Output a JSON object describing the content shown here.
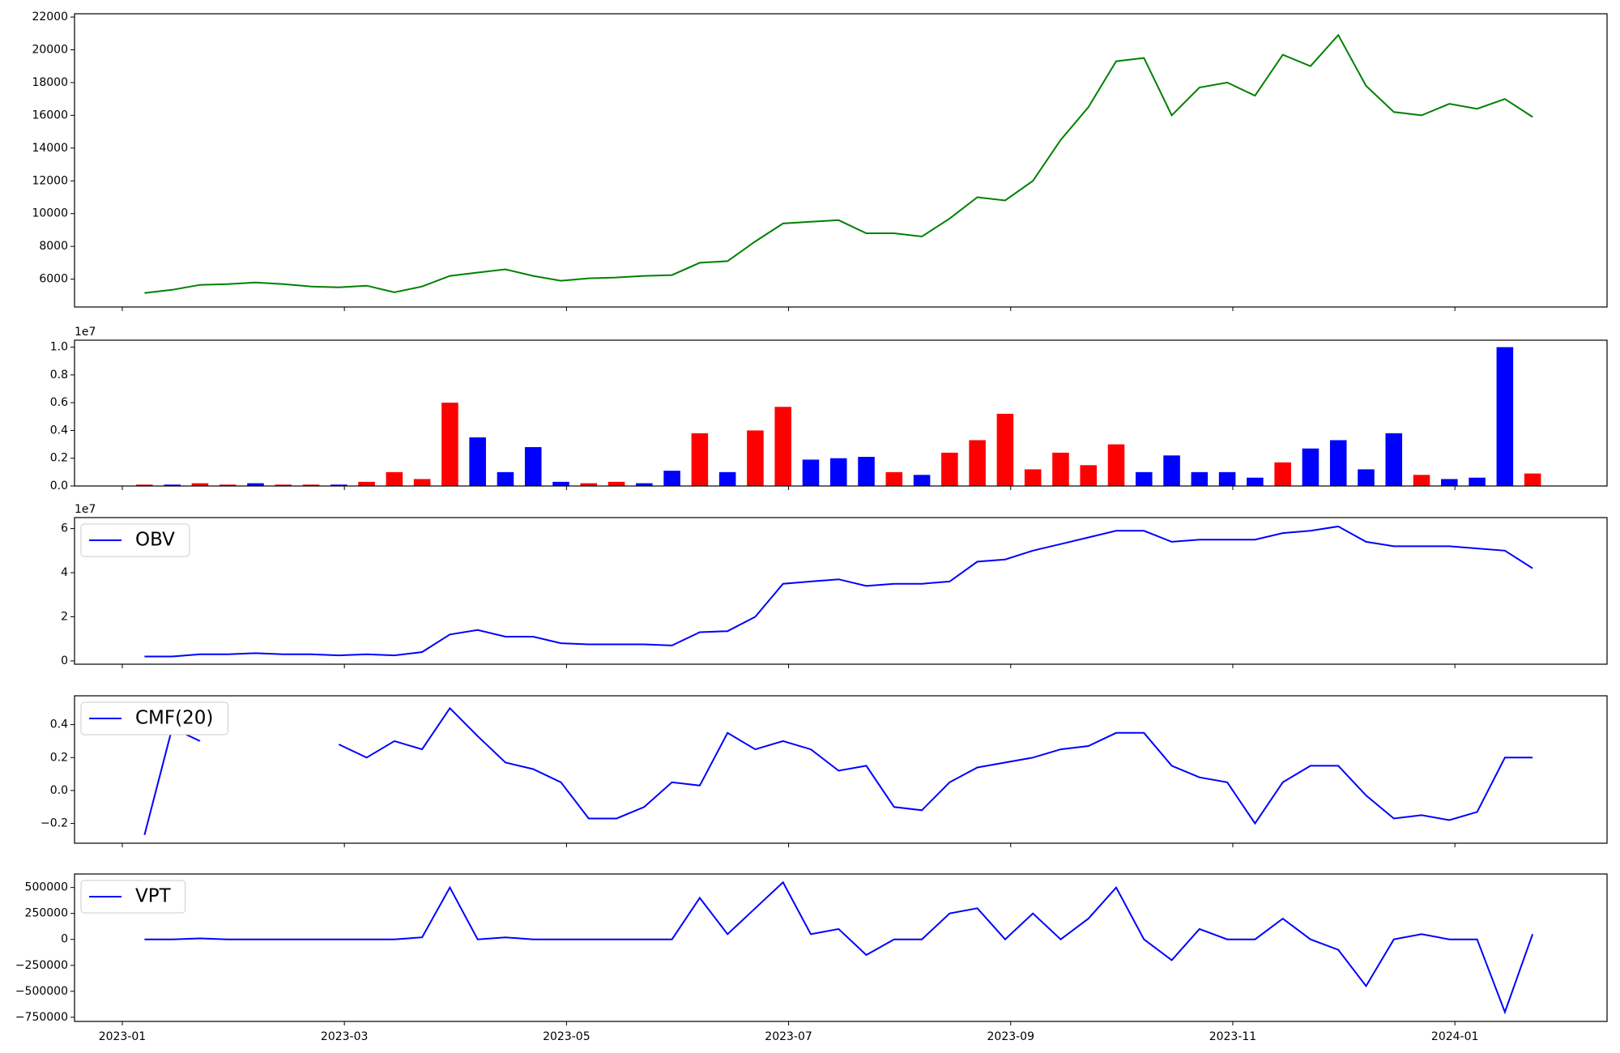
{
  "chart_data": [
    {
      "type": "line",
      "color": "green",
      "x": [
        0.2,
        0.45,
        0.7,
        0.95,
        1.2,
        1.45,
        1.7,
        1.95,
        2.2,
        2.45,
        2.7,
        2.95,
        3.2,
        3.45,
        3.7,
        3.95,
        4.2,
        4.45,
        4.7,
        4.95,
        5.2,
        5.45,
        5.7,
        5.95,
        6.2,
        6.45,
        6.7,
        6.95,
        7.2,
        7.45,
        7.7,
        7.95,
        8.2,
        8.45,
        8.7,
        8.95,
        9.2,
        9.45,
        9.7,
        9.95,
        10.2,
        10.45,
        10.7,
        10.95,
        11.2,
        11.45,
        11.7,
        11.95,
        12.2,
        12.45,
        12.7
      ],
      "values": [
        5150,
        5350,
        5650,
        5700,
        5800,
        5700,
        5550,
        5500,
        5600,
        5200,
        5550,
        6200,
        6400,
        6600,
        6200,
        5900,
        6050,
        6100,
        6200,
        6250,
        7000,
        7100,
        8300,
        9400,
        9500,
        9600,
        8800,
        8800,
        8600,
        9700,
        11000,
        10800,
        12000,
        14500,
        16500,
        19300,
        19500,
        16000,
        17700,
        18000,
        17200,
        19700,
        19000,
        20900,
        17800,
        16200,
        16000,
        16700,
        16400,
        17000,
        15900
      ],
      "xlim": [
        -0.43,
        13.37
      ],
      "ylim": [
        4300,
        22200
      ],
      "yticks": [
        6000,
        8000,
        10000,
        12000,
        14000,
        16000,
        18000,
        20000,
        22000
      ]
    },
    {
      "type": "bar",
      "offset_text": "1e7",
      "x": [
        0.2,
        0.45,
        0.7,
        0.95,
        1.2,
        1.45,
        1.7,
        1.95,
        2.2,
        2.45,
        2.7,
        2.95,
        3.2,
        3.45,
        3.7,
        3.95,
        4.2,
        4.45,
        4.7,
        4.95,
        5.2,
        5.45,
        5.7,
        5.95,
        6.2,
        6.45,
        6.7,
        6.95,
        7.2,
        7.45,
        7.7,
        7.95,
        8.2,
        8.45,
        8.7,
        8.95,
        9.2,
        9.45,
        9.7,
        9.95,
        10.2,
        10.45,
        10.7,
        10.95,
        11.2,
        11.45,
        11.7,
        11.95,
        12.2,
        12.45,
        12.7
      ],
      "values": [
        0.01,
        0.01,
        0.02,
        0.01,
        0.02,
        0.01,
        0.01,
        0.01,
        0.03,
        0.1,
        0.05,
        0.6,
        0.35,
        0.1,
        0.28,
        0.03,
        0.02,
        0.03,
        0.02,
        0.11,
        0.38,
        0.1,
        0.4,
        0.57,
        0.19,
        0.2,
        0.21,
        0.1,
        0.08,
        0.24,
        0.33,
        0.52,
        0.12,
        0.24,
        0.15,
        0.3,
        0.1,
        0.22,
        0.1,
        0.1,
        0.06,
        0.17,
        0.27,
        0.33,
        0.12,
        0.38,
        0.08,
        0.05,
        0.06,
        1.0,
        0.09
      ],
      "colors": [
        "red",
        "blue",
        "red",
        "red",
        "blue",
        "red",
        "red",
        "blue",
        "red",
        "red",
        "red",
        "red",
        "blue",
        "blue",
        "blue",
        "blue",
        "red",
        "red",
        "blue",
        "blue",
        "red",
        "blue",
        "red",
        "red",
        "blue",
        "blue",
        "blue",
        "red",
        "blue",
        "red",
        "red",
        "red",
        "red",
        "red",
        "red",
        "red",
        "blue",
        "blue",
        "blue",
        "blue",
        "blue",
        "red",
        "blue",
        "blue",
        "blue",
        "blue",
        "red",
        "blue",
        "blue",
        "blue",
        "red"
      ],
      "xlim": [
        -0.43,
        13.37
      ],
      "ylim": [
        0,
        1.05
      ],
      "yticks": [
        {
          "value": 0,
          "label": "0.0"
        },
        0.2,
        0.4,
        0.6,
        0.8,
        {
          "value": 1,
          "label": "1.0"
        }
      ]
    },
    {
      "type": "line",
      "color": "blue",
      "offset_text": "1e7",
      "legend": "OBV",
      "x": [
        0.2,
        0.45,
        0.7,
        0.95,
        1.2,
        1.45,
        1.7,
        1.95,
        2.2,
        2.45,
        2.7,
        2.95,
        3.2,
        3.45,
        3.7,
        3.95,
        4.2,
        4.45,
        4.7,
        4.95,
        5.2,
        5.45,
        5.7,
        5.95,
        6.2,
        6.45,
        6.7,
        6.95,
        7.2,
        7.45,
        7.7,
        7.95,
        8.2,
        8.45,
        8.7,
        8.95,
        9.2,
        9.45,
        9.7,
        9.95,
        10.2,
        10.45,
        10.7,
        10.95,
        11.2,
        11.45,
        11.7,
        11.95,
        12.2,
        12.45,
        12.7
      ],
      "values": [
        0.2,
        0.2,
        0.3,
        0.3,
        0.35,
        0.3,
        0.3,
        0.25,
        0.3,
        0.25,
        0.4,
        1.2,
        1.4,
        1.1,
        1.1,
        0.8,
        0.75,
        0.75,
        0.75,
        0.7,
        1.3,
        1.35,
        2.0,
        3.5,
        3.6,
        3.7,
        3.4,
        3.5,
        3.5,
        3.6,
        4.5,
        4.6,
        5.0,
        5.3,
        5.6,
        5.9,
        5.9,
        5.4,
        5.5,
        5.5,
        5.5,
        5.8,
        5.9,
        6.1,
        5.4,
        5.2,
        5.2,
        5.2,
        5.1,
        5.0,
        4.2
      ],
      "xlim": [
        -0.43,
        13.37
      ],
      "ylim": [
        -0.15,
        6.5
      ],
      "yticks": [
        0,
        2,
        4,
        6
      ]
    },
    {
      "type": "line",
      "color": "blue",
      "legend": "CMF(20)",
      "x": [
        0.2,
        0.45,
        0.7,
        0.95,
        1.2,
        1.45,
        1.7,
        1.95,
        2.2,
        2.45,
        2.7,
        2.95,
        3.2,
        3.45,
        3.7,
        3.95,
        4.2,
        4.45,
        4.7,
        4.95,
        5.2,
        5.45,
        5.7,
        5.95,
        6.2,
        6.45,
        6.7,
        6.95,
        7.2,
        7.45,
        7.7,
        7.95,
        8.2,
        8.45,
        8.7,
        8.95,
        9.2,
        9.45,
        9.7,
        9.95,
        10.2,
        10.45,
        10.7,
        10.95,
        11.2,
        11.45,
        11.7,
        11.95,
        12.2,
        12.45,
        12.7
      ],
      "values": [
        -0.27,
        0.38,
        0.3,
        null,
        null,
        null,
        null,
        0.28,
        0.2,
        0.3,
        0.25,
        0.5,
        0.33,
        0.17,
        0.13,
        0.05,
        -0.17,
        -0.17,
        -0.1,
        0.05,
        0.03,
        0.35,
        0.25,
        0.3,
        0.25,
        0.12,
        0.15,
        -0.1,
        -0.12,
        0.05,
        0.14,
        0.17,
        0.2,
        0.25,
        0.27,
        0.35,
        0.35,
        0.15,
        0.08,
        0.05,
        -0.2,
        0.05,
        0.15,
        0.15,
        -0.03,
        -0.17,
        -0.15,
        -0.18,
        -0.13,
        0.2,
        0.2
      ],
      "xlim": [
        -0.43,
        13.37
      ],
      "ylim": [
        -0.32,
        0.575
      ],
      "yticks": [
        {
          "value": -0.2,
          "label": "−0.2"
        },
        {
          "value": 0,
          "label": "0.0"
        },
        0.2,
        0.4
      ]
    },
    {
      "type": "line",
      "color": "blue",
      "legend": "VPT",
      "x": [
        0.2,
        0.45,
        0.7,
        0.95,
        1.2,
        1.45,
        1.7,
        1.95,
        2.2,
        2.45,
        2.7,
        2.95,
        3.2,
        3.45,
        3.7,
        3.95,
        4.2,
        4.45,
        4.7,
        4.95,
        5.2,
        5.45,
        5.7,
        5.95,
        6.2,
        6.45,
        6.7,
        6.95,
        7.2,
        7.45,
        7.7,
        7.95,
        8.2,
        8.45,
        8.7,
        8.95,
        9.2,
        9.45,
        9.7,
        9.95,
        10.2,
        10.45,
        10.7,
        10.95,
        11.2,
        11.45,
        11.7,
        11.95,
        12.2,
        12.45,
        12.7
      ],
      "values": [
        0,
        0,
        10000,
        0,
        0,
        0,
        0,
        0,
        0,
        0,
        20000,
        500000,
        0,
        20000,
        0,
        0,
        0,
        0,
        0,
        0,
        400000,
        50000,
        300000,
        550000,
        50000,
        100000,
        -150000,
        0,
        0,
        250000,
        300000,
        0,
        250000,
        0,
        200000,
        500000,
        0,
        -200000,
        100000,
        0,
        0,
        200000,
        0,
        -100000,
        -450000,
        0,
        50000,
        0,
        0,
        -700000,
        50000
      ],
      "xlim": [
        -0.43,
        13.37
      ],
      "ylim": [
        -790000,
        630000
      ],
      "yticks": [
        {
          "value": -750000,
          "label": "−750000"
        },
        {
          "value": -500000,
          "label": "−500000"
        },
        {
          "value": -250000,
          "label": "−250000"
        },
        0,
        250000,
        500000
      ],
      "xticks": [
        {
          "value": 0,
          "label": "2023-01"
        },
        {
          "value": 2,
          "label": "2023-03"
        },
        {
          "value": 4,
          "label": "2023-05"
        },
        {
          "value": 6,
          "label": "2023-07"
        },
        {
          "value": 8,
          "label": "2023-09"
        },
        {
          "value": 10,
          "label": "2023-11"
        },
        {
          "value": 12,
          "label": "2024-01"
        }
      ]
    }
  ]
}
